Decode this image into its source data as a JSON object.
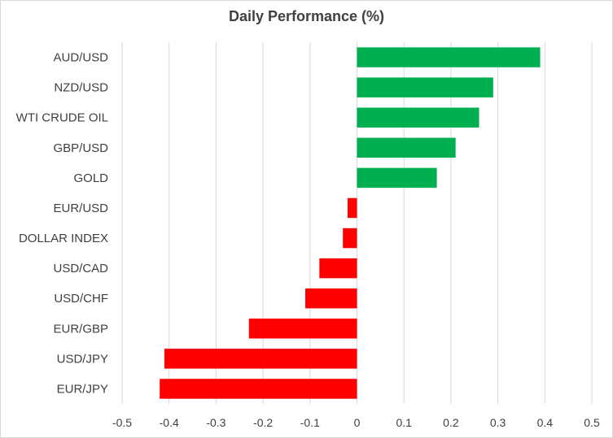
{
  "chart_data": {
    "type": "bar",
    "orientation": "horizontal",
    "title": "Daily Performance  (%)",
    "categories": [
      "AUD/USD",
      "NZD/USD",
      "WTI CRUDE OIL",
      "GBP/USD",
      "GOLD",
      "EUR/USD",
      "DOLLAR INDEX",
      "USD/CAD",
      "USD/CHF",
      "EUR/GBP",
      "USD/JPY",
      "EUR/JPY"
    ],
    "values": [
      0.39,
      0.29,
      0.26,
      0.21,
      0.17,
      -0.02,
      -0.03,
      -0.08,
      -0.11,
      -0.23,
      -0.41,
      -0.42
    ],
    "xlim": [
      -0.5,
      0.5
    ],
    "xticks": [
      "-0.5",
      "-0.4",
      "-0.3",
      "-0.2",
      "-0.1",
      "0",
      "0.1",
      "0.2",
      "0.3",
      "0.4",
      "0.5"
    ],
    "xtick_values": [
      -0.5,
      -0.4,
      -0.3,
      -0.2,
      -0.1,
      0,
      0.1,
      0.2,
      0.3,
      0.4,
      0.5
    ],
    "grid": "vertical",
    "legend": "none",
    "colors": {
      "positive": "#00b050",
      "negative": "#ff0000",
      "grid": "#d9d9d9"
    }
  }
}
